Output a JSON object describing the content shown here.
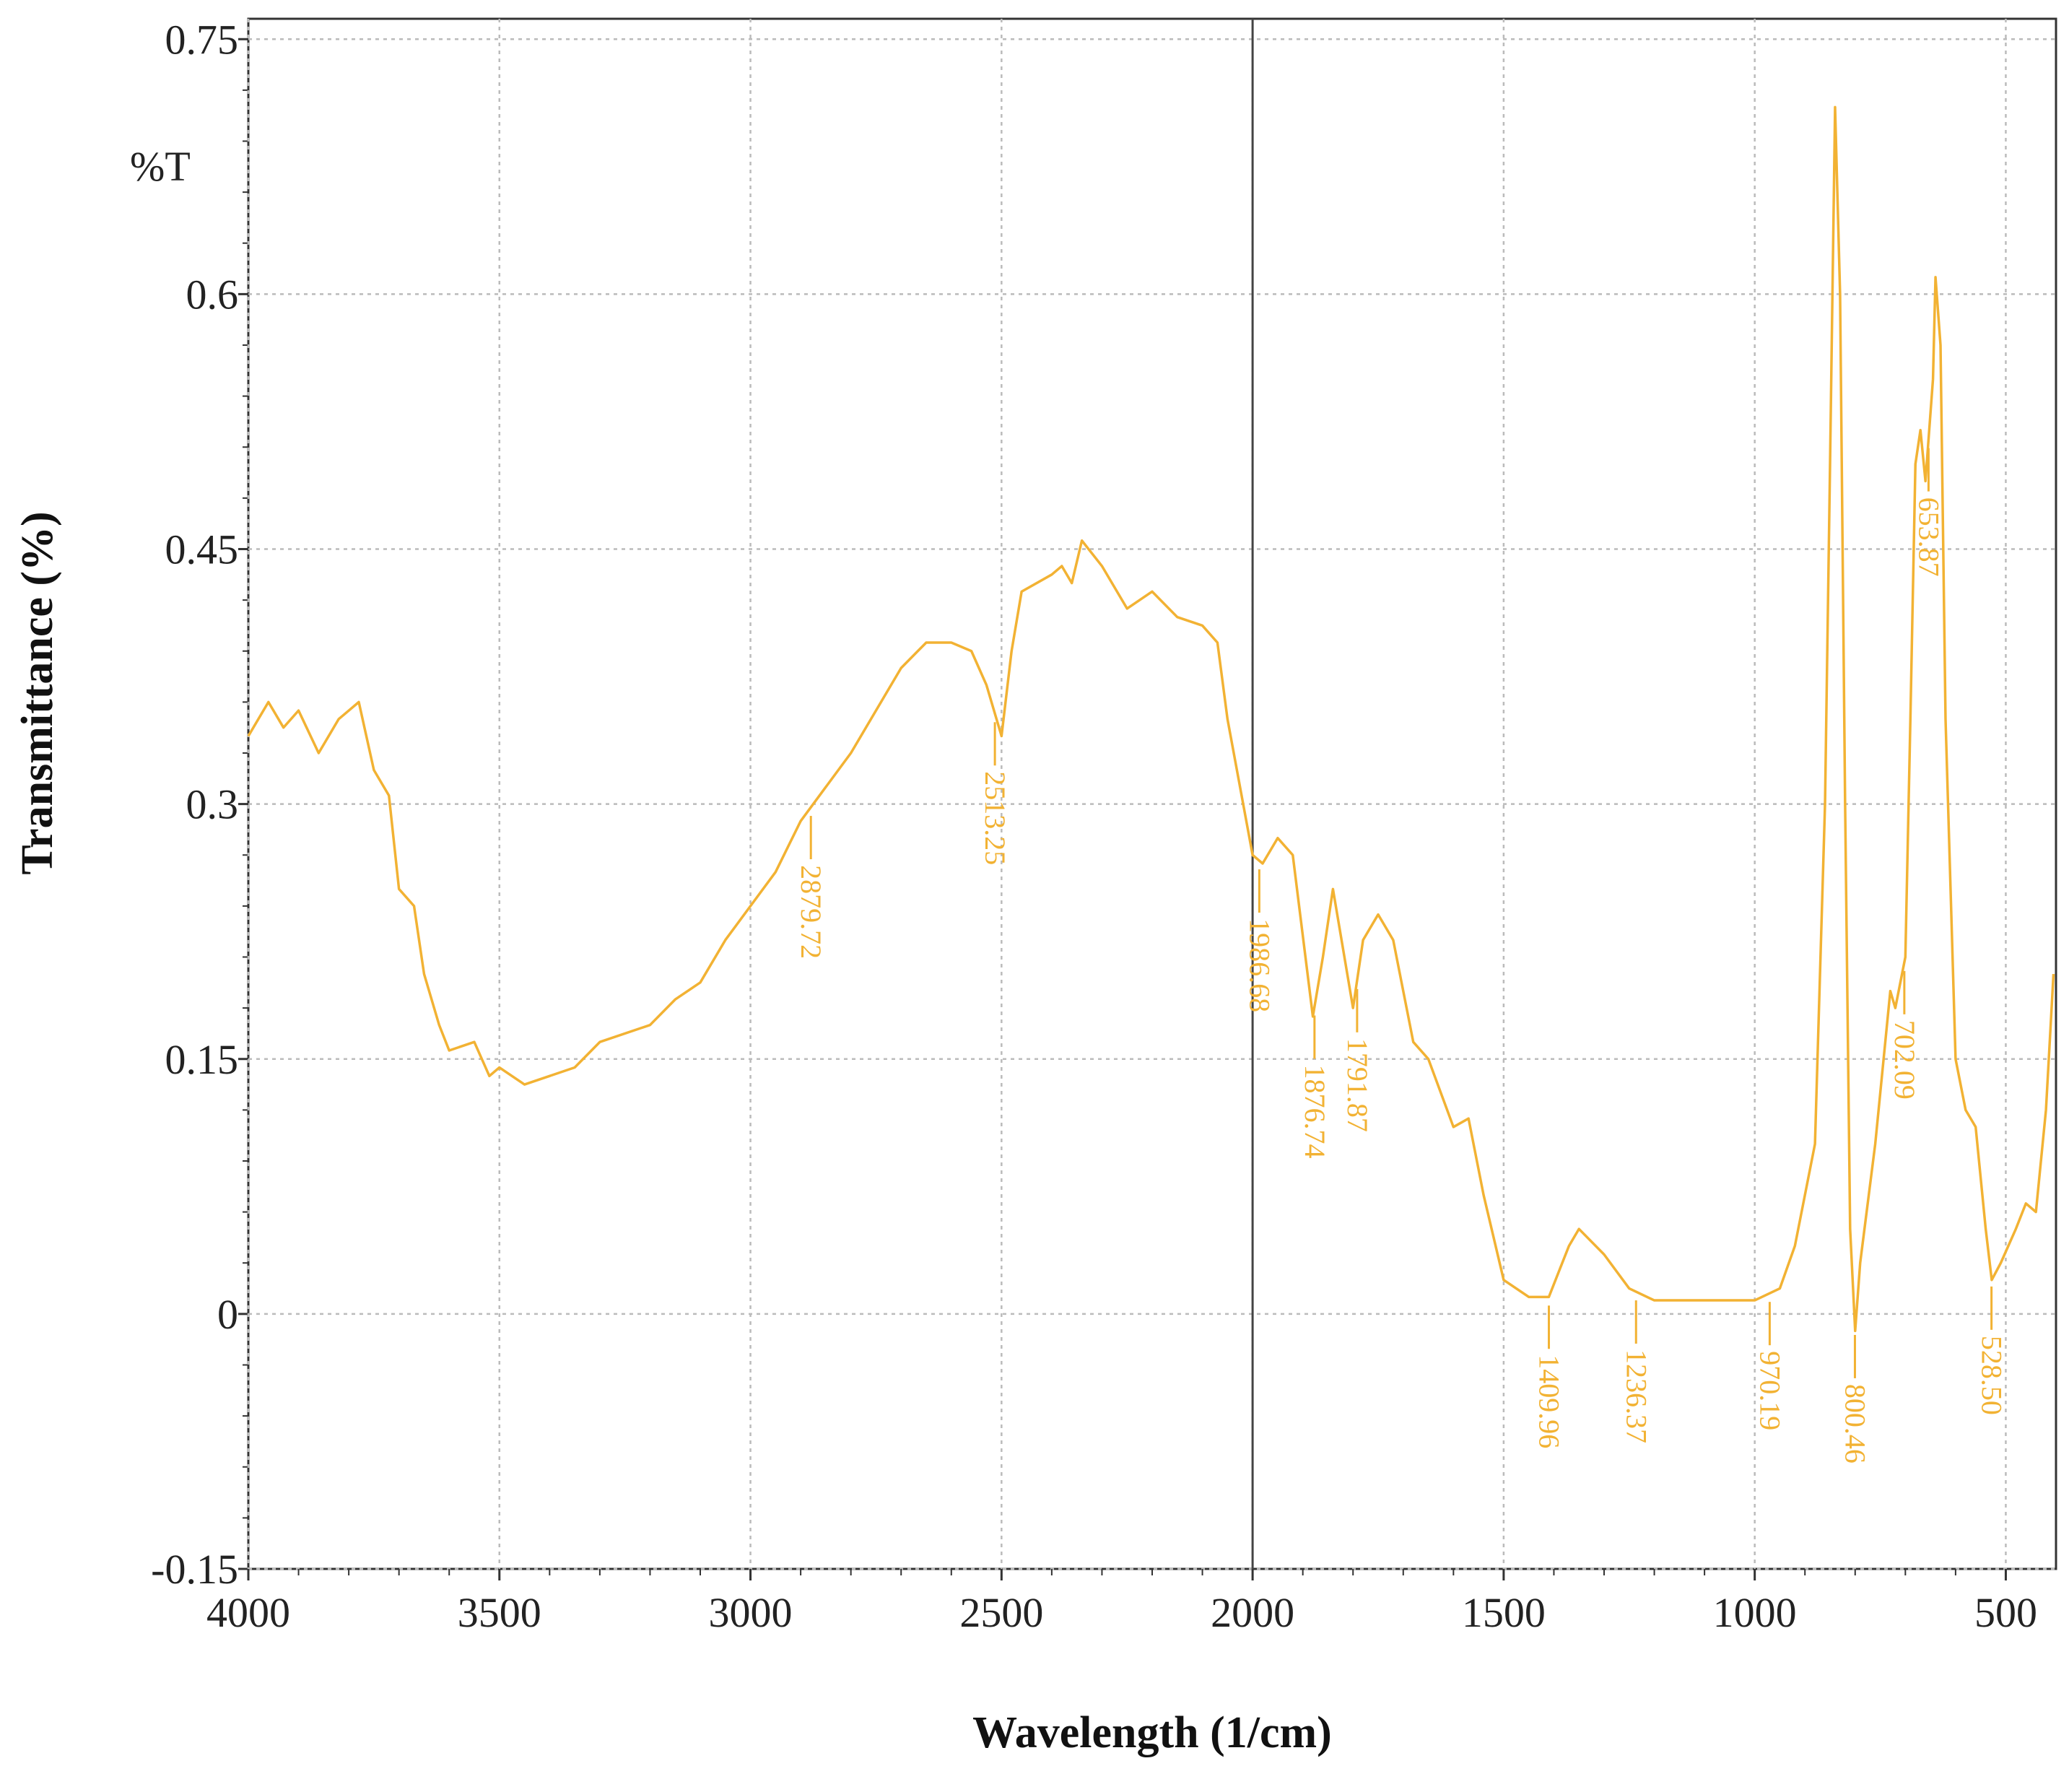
{
  "chart_data": {
    "type": "line",
    "xlabel": "Wavelength (1/cm)",
    "ylabel": "Transmittance (%)",
    "units_label": "%T",
    "color": "#f2b233",
    "xlim": [
      4000,
      400
    ],
    "ylim": [
      -0.15,
      0.762
    ],
    "xticks": [
      4000,
      3500,
      3000,
      2500,
      2000,
      1500,
      1000,
      500
    ],
    "yticks": [
      0.75,
      0.6,
      0.45,
      0.3,
      0.15,
      0,
      -0.15
    ],
    "grid": true,
    "vline": 2000,
    "x": [
      4000,
      3960,
      3930,
      3900,
      3860,
      3820,
      3800,
      3780,
      3750,
      3720,
      3700,
      3670,
      3650,
      3620,
      3600,
      3550,
      3520,
      3500,
      3450,
      3400,
      3350,
      3300,
      3200,
      3150,
      3100,
      3050,
      3000,
      2950,
      2900,
      2850,
      2800,
      2750,
      2700,
      2650,
      2600,
      2560,
      2530,
      2500,
      2480,
      2460,
      2400,
      2380,
      2360,
      2340,
      2300,
      2250,
      2200,
      2150,
      2100,
      2070,
      2050,
      2000,
      1980,
      1950,
      1920,
      1880,
      1860,
      1840,
      1800,
      1780,
      1750,
      1720,
      1680,
      1650,
      1600,
      1570,
      1540,
      1500,
      1450,
      1410,
      1370,
      1350,
      1300,
      1250,
      1200,
      1150,
      1100,
      1000,
      950,
      920,
      900,
      880,
      860,
      850,
      840,
      830,
      820,
      810,
      800,
      790,
      760,
      730,
      720,
      700,
      690,
      680,
      670,
      660,
      645,
      640,
      630,
      620,
      600,
      580,
      560,
      540,
      528,
      510,
      480,
      460,
      440,
      420,
      405
    ],
    "values": [
      0.34,
      0.36,
      0.345,
      0.355,
      0.33,
      0.35,
      0.355,
      0.36,
      0.32,
      0.305,
      0.25,
      0.24,
      0.2,
      0.17,
      0.155,
      0.16,
      0.14,
      0.145,
      0.135,
      0.14,
      0.145,
      0.16,
      0.17,
      0.185,
      0.195,
      0.22,
      0.24,
      0.26,
      0.29,
      0.31,
      0.33,
      0.355,
      0.38,
      0.395,
      0.395,
      0.39,
      0.37,
      0.34,
      0.39,
      0.425,
      0.435,
      0.44,
      0.43,
      0.455,
      0.44,
      0.415,
      0.425,
      0.41,
      0.405,
      0.395,
      0.35,
      0.27,
      0.265,
      0.28,
      0.27,
      0.175,
      0.21,
      0.25,
      0.18,
      0.22,
      0.235,
      0.22,
      0.16,
      0.15,
      0.11,
      0.115,
      0.07,
      0.02,
      0.01,
      0.01,
      0.04,
      0.05,
      0.035,
      0.015,
      0.008,
      0.008,
      0.008,
      0.008,
      0.015,
      0.04,
      0.07,
      0.1,
      0.3,
      0.5,
      0.71,
      0.6,
      0.3,
      0.05,
      -0.01,
      0.03,
      0.1,
      0.19,
      0.18,
      0.21,
      0.35,
      0.5,
      0.52,
      0.49,
      0.55,
      0.61,
      0.57,
      0.35,
      0.15,
      0.12,
      0.11,
      0.05,
      0.02,
      0.03,
      0.05,
      0.065,
      0.06,
      0.12,
      0.2
    ],
    "annotations": [
      {
        "x": 2879.72,
        "label": "2879.72"
      },
      {
        "x": 2513.25,
        "label": "2513.25"
      },
      {
        "x": 1986.68,
        "label": "1986.68"
      },
      {
        "x": 1876.74,
        "label": "1876.74"
      },
      {
        "x": 1791.87,
        "label": "1791.87"
      },
      {
        "x": 1409.96,
        "label": "1409.96"
      },
      {
        "x": 1236.37,
        "label": "1236.37"
      },
      {
        "x": 970.19,
        "label": "970.19"
      },
      {
        "x": 800.46,
        "label": "800.46"
      },
      {
        "x": 702.09,
        "label": "702.09"
      },
      {
        "x": 653.87,
        "label": "653.87"
      },
      {
        "x": 528.5,
        "label": "528.50"
      }
    ]
  }
}
